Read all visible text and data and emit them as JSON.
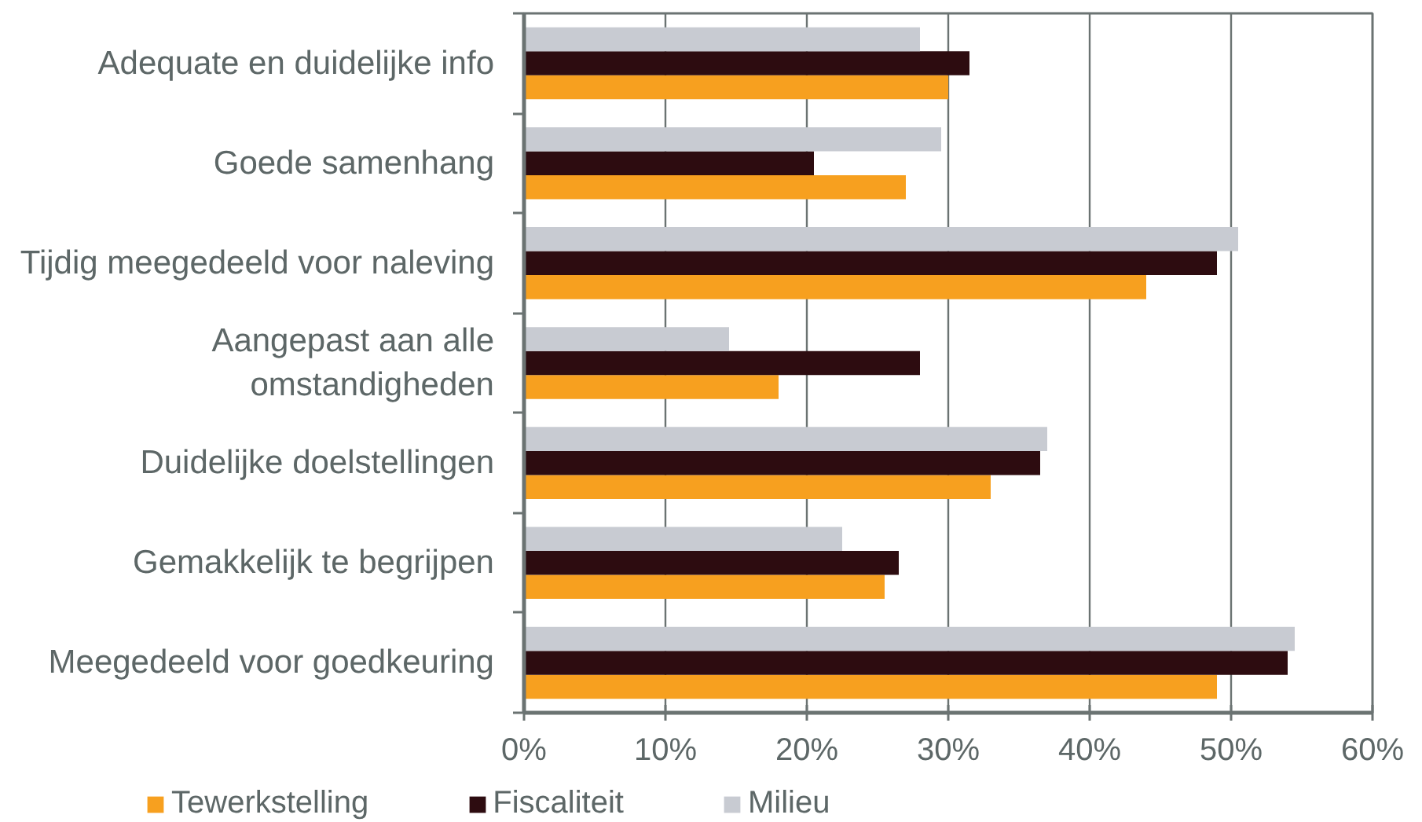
{
  "chart_data": {
    "type": "bar",
    "orientation": "horizontal",
    "categories": [
      "Adequate en duidelijke info",
      "Goede samenhang",
      "Tijdig meegedeeld voor naleving",
      "Aangepast aan alle omstandigheden",
      "Duidelijke doelstellingen",
      "Gemakkelijk te begrijpen",
      "Meegedeeld voor goedkeuring"
    ],
    "series": [
      {
        "name": "Tewerkstelling",
        "color": "#f7a01f",
        "values": [
          30,
          27,
          44,
          18,
          33,
          25.5,
          49
        ]
      },
      {
        "name": "Fiscaliteit",
        "color": "#2d0c10",
        "values": [
          31.5,
          20.5,
          49,
          28,
          36.5,
          26.5,
          54
        ]
      },
      {
        "name": "Milieu",
        "color": "#c8cbd2",
        "values": [
          28,
          29.5,
          50.5,
          14.5,
          37,
          22.5,
          54.5
        ]
      }
    ],
    "xlim": [
      0,
      60
    ],
    "xticks": [
      {
        "value": 0,
        "label": "0%"
      },
      {
        "value": 10,
        "label": "10%"
      },
      {
        "value": 20,
        "label": "20%"
      },
      {
        "value": 30,
        "label": "30%"
      },
      {
        "value": 40,
        "label": "40%"
      },
      {
        "value": 50,
        "label": "50%"
      },
      {
        "value": 60,
        "label": "60%"
      }
    ],
    "grid": "x",
    "legend": "bottom"
  }
}
